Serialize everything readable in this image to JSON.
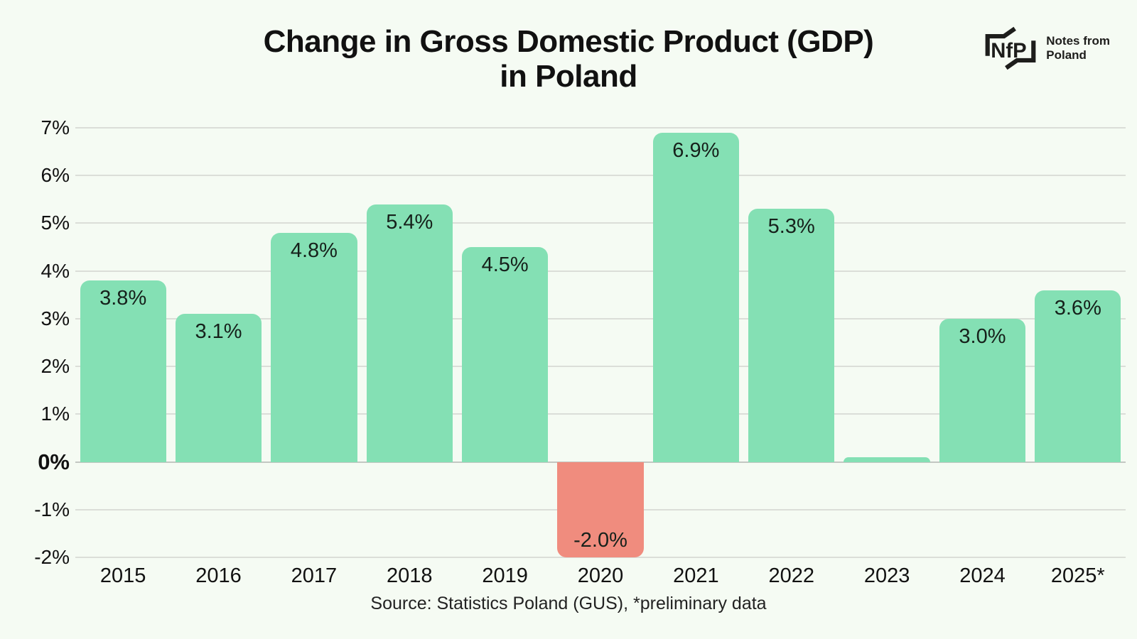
{
  "page": {
    "background_color": "#f5fbf3",
    "text_color": "#111111"
  },
  "header": {
    "title_line1": "Change in Gross Domestic Product (GDP)",
    "title_line2": "in Poland"
  },
  "logo": {
    "mark_text": "NfP",
    "wordmark": "Notes from\nPoland",
    "color": "#1d1d1b"
  },
  "chart_data": {
    "type": "bar",
    "title": "Change in Gross Domestic Product (GDP) in Poland",
    "categories": [
      "2015",
      "2016",
      "2017",
      "2018",
      "2019",
      "2020",
      "2021",
      "2022",
      "2023",
      "2024",
      "2025*"
    ],
    "values": [
      3.8,
      3.1,
      4.8,
      5.4,
      4.5,
      -2.0,
      6.9,
      5.3,
      0.1,
      3.0,
      3.6
    ],
    "bar_labels": [
      "3.8%",
      "3.1%",
      "4.8%",
      "5.4%",
      "4.5%",
      "-2.0%",
      "6.9%",
      "5.3%",
      "",
      "3.0%",
      "3.6%"
    ],
    "xlabel": "",
    "ylabel": "",
    "ylim": [
      -2,
      7
    ],
    "ytick_step": 1,
    "ytick_suffix": "%",
    "grid": true,
    "legend": "none",
    "bar_color_positive": "#84e0b4",
    "bar_color_negative": "#f08c7e"
  },
  "footer": {
    "source": "Source: Statistics Poland (GUS), *preliminary data"
  }
}
